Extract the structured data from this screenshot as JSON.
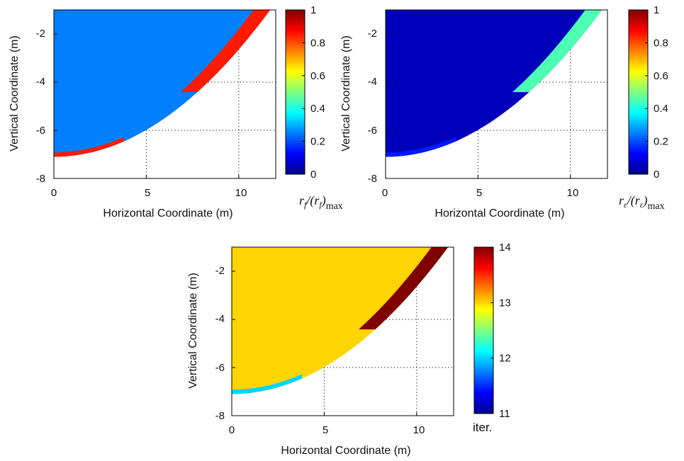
{
  "chart_data": [
    {
      "type": "heatmap",
      "field": "normalized residual rf",
      "x": [
        0,
        11.7
      ],
      "y": [
        -8,
        -1
      ],
      "xlim": [
        0,
        12
      ],
      "ylim": [
        -8,
        -1
      ],
      "xticks": [
        "0",
        "5",
        "10"
      ],
      "yticks": [
        "-2",
        "-4",
        "-6",
        "-8"
      ],
      "xlabel": "Horizontal Coordinate (m)",
      "ylabel": "Vertical Coordinate (m)",
      "colorbar": {
        "range": [
          0,
          1
        ],
        "ticks": [
          "0",
          "0.2",
          "0.4",
          "0.6",
          "0.8",
          "1"
        ],
        "label_parts": [
          "r",
          "f",
          "/(r",
          "f",
          ")",
          "max"
        ]
      },
      "background_value": 0.25,
      "edge_band_value": 0.85,
      "bottom_band_value": 0.85,
      "grid": true
    },
    {
      "type": "heatmap",
      "field": "normalized residual re",
      "x": [
        0,
        11.7
      ],
      "y": [
        -8,
        -1
      ],
      "xlim": [
        0,
        12
      ],
      "ylim": [
        -8,
        -1
      ],
      "xticks": [
        "0",
        "5",
        "10"
      ],
      "yticks": [
        "-2",
        "-4",
        "-6",
        "-8"
      ],
      "xlabel": "Horizontal Coordinate (m)",
      "ylabel": "Vertical Coordinate (m)",
      "colorbar": {
        "range": [
          0,
          1
        ],
        "ticks": [
          "0",
          "0.2",
          "0.4",
          "0.6",
          "0.8",
          "1"
        ],
        "label_parts": [
          "r",
          "ε",
          "/(r",
          "ε",
          ")",
          "max"
        ]
      },
      "background_value": 0.05,
      "edge_band_value": 0.45,
      "bottom_band_value": 0.15,
      "grid": true
    },
    {
      "type": "heatmap",
      "field": "iterations",
      "x": [
        0,
        11.7
      ],
      "y": [
        -8,
        -1
      ],
      "xlim": [
        0,
        12
      ],
      "ylim": [
        -8,
        -1
      ],
      "xticks": [
        "0",
        "5",
        "10"
      ],
      "yticks": [
        "-2",
        "-4",
        "-6",
        "-8"
      ],
      "xlabel": "Horizontal Coordinate (m)",
      "ylabel": "Vertical Coordinate (m)",
      "colorbar": {
        "range": [
          11,
          14
        ],
        "ticks": [
          "11",
          "12",
          "13",
          "14"
        ],
        "label_parts": [
          "iter."
        ]
      },
      "background_value": 13,
      "edge_band_value": 14,
      "bottom_band_value": 12,
      "grid": true
    }
  ]
}
